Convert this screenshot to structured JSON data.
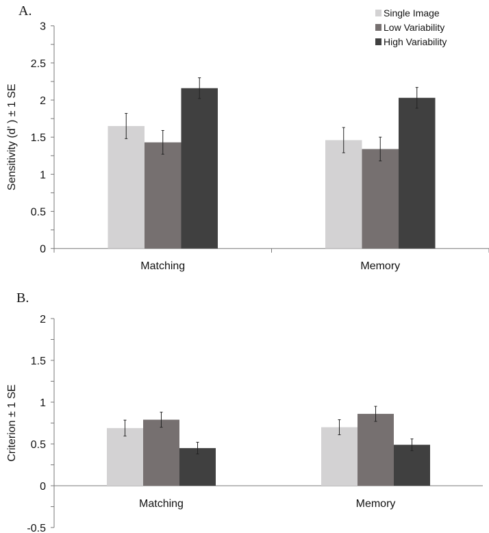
{
  "series_colors": [
    "#d3d2d3",
    "#767070",
    "#404040"
  ],
  "legend": [
    "Single Image",
    "Low Variability",
    "High Variability"
  ],
  "chart_data": [
    {
      "type": "bar",
      "panel_label": "A.",
      "ylabel": "Sensitivity (d’ ) ± 1 SE",
      "ylim": [
        0,
        3
      ],
      "yticks": [
        "0",
        "0.5",
        "1",
        "1.5",
        "2",
        "2.5",
        "3"
      ],
      "ytick_values": [
        0,
        0.5,
        1,
        1.5,
        2,
        2.5,
        3
      ],
      "categories": [
        "Matching",
        "Memory"
      ],
      "legend_position": "top-right",
      "series": [
        {
          "name": "Single Image",
          "values": [
            1.65,
            1.46
          ],
          "se": [
            0.17,
            0.17
          ]
        },
        {
          "name": "Low Variability",
          "values": [
            1.43,
            1.34
          ],
          "se": [
            0.16,
            0.16
          ]
        },
        {
          "name": "High Variability",
          "values": [
            2.16,
            2.03
          ],
          "se": [
            0.14,
            0.14
          ]
        }
      ]
    },
    {
      "type": "bar",
      "panel_label": "B.",
      "ylabel": "Criterion ± 1 SE",
      "ylim": [
        -0.5,
        2
      ],
      "yticks": [
        "-0.5",
        "0",
        "0.5",
        "1",
        "1.5",
        "2"
      ],
      "ytick_values": [
        -0.5,
        0,
        0.5,
        1,
        1.5,
        2
      ],
      "categories": [
        "Matching",
        "Memory"
      ],
      "series": [
        {
          "name": "Single Image",
          "values": [
            0.69,
            0.7
          ],
          "se": [
            0.095,
            0.09
          ]
        },
        {
          "name": "Low Variability",
          "values": [
            0.79,
            0.86
          ],
          "se": [
            0.09,
            0.09
          ]
        },
        {
          "name": "High Variability",
          "values": [
            0.45,
            0.49
          ],
          "se": [
            0.07,
            0.07
          ]
        }
      ]
    }
  ]
}
